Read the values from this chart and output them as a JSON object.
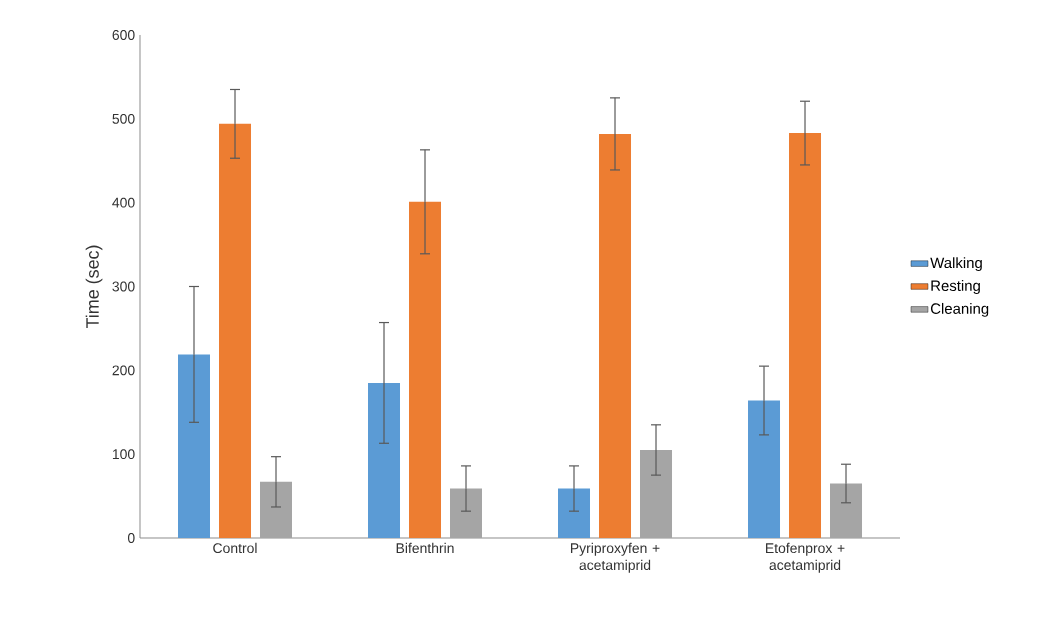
{
  "chart_data": {
    "type": "bar",
    "ylabel": "Time (sec)",
    "categories": [
      "Control",
      "Bifenthrin",
      "Pyriproxyfen + acetamiprid",
      "Etofenprox + acetamiprid"
    ],
    "series": [
      {
        "name": "Walking",
        "color": "#5b9bd5",
        "values": [
          219,
          185,
          59,
          164
        ],
        "errors": [
          81,
          72,
          27,
          41
        ]
      },
      {
        "name": "Resting",
        "color": "#ed7d31",
        "values": [
          494,
          401,
          482,
          483
        ],
        "errors": [
          41,
          62,
          43,
          38
        ]
      },
      {
        "name": "Cleaning",
        "color": "#a5a5a5",
        "values": [
          67,
          59,
          105,
          65
        ],
        "errors": [
          30,
          27,
          30,
          23
        ]
      }
    ],
    "ylim": [
      0,
      600
    ],
    "yticks": [
      0,
      100,
      200,
      300,
      400,
      500,
      600
    ],
    "legend": "right"
  }
}
